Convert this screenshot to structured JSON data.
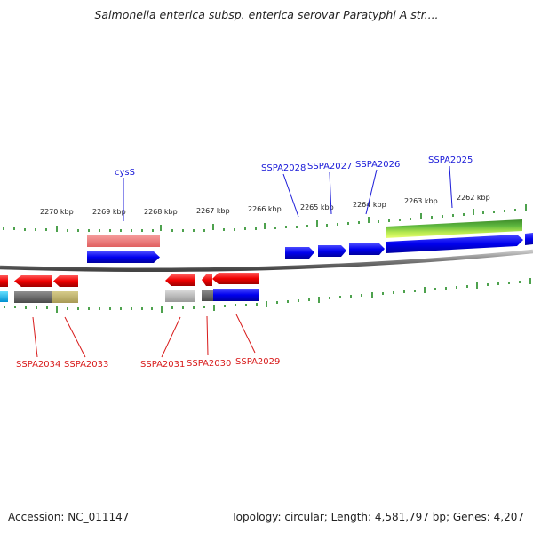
{
  "title": "Salmonella enterica subsp. enterica serovar Paratyphi A str....",
  "footer": {
    "accession": "Accession: NC_011147",
    "summary": "Topology: circular; Length: 4,581,797 bp; Genes: 4,207"
  },
  "scale_labels": [
    "2270 kbp",
    "2269 kbp",
    "2268 kbp",
    "2267 kbp",
    "2266 kbp",
    "2265 kbp",
    "2264 kbp",
    "2263 kbp",
    "2262 kbp"
  ],
  "gene_labels_top": [
    "cysS",
    "SSPA2028",
    "SSPA2027",
    "SSPA2026",
    "SSPA2025"
  ],
  "gene_labels_bottom": [
    "SSPA2034",
    "SSPA2033",
    "SSPA2031",
    "SSPA2030",
    "SSPA2029"
  ],
  "colors": {
    "forward_gene": "#0000ee",
    "reverse_gene": "#ee0000",
    "rna": "#f08080",
    "backbone": "#888888",
    "tick": "#228b22",
    "label_blue": "#1a1ad8",
    "label_red": "#d81a1a"
  }
}
